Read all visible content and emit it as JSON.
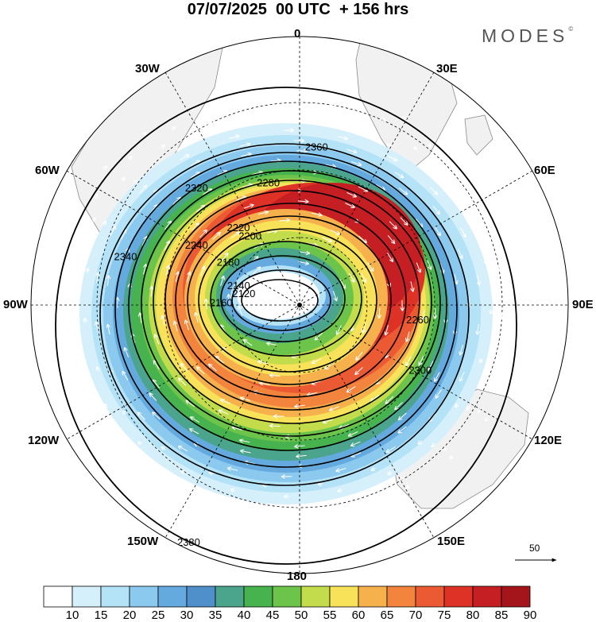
{
  "title": "07/07/2025  00 UTC  + 156 hrs",
  "brand": "MODES",
  "brand_mark": "©",
  "longitude_labels": {
    "0": "0",
    "30E": "30E",
    "60E": "60E",
    "90E": "90E",
    "120E": "120E",
    "150E": "150E",
    "180": "180",
    "150W": "150W",
    "120W": "120W",
    "90W": "90W",
    "60W": "60W",
    "30W": "30W"
  },
  "contours": [
    "2120",
    "2140",
    "2160",
    "2180",
    "2200",
    "2220",
    "2240",
    "2260",
    "2280",
    "2300",
    "2320",
    "2340",
    "2360",
    "2380"
  ],
  "colorbar": {
    "labels": [
      "10",
      "15",
      "20",
      "25",
      "30",
      "35",
      "40",
      "45",
      "50",
      "55",
      "60",
      "65",
      "70",
      "75",
      "80",
      "85",
      "90"
    ],
    "colors": [
      "#ffffff",
      "#d6f0fb",
      "#b4e2f7",
      "#8cc9ee",
      "#65aadf",
      "#4f90ca",
      "#4aa58c",
      "#47b34e",
      "#6cc44b",
      "#c3dc4b",
      "#f7e25a",
      "#f6b14d",
      "#f3843e",
      "#ec5a33",
      "#de3226",
      "#c51e23",
      "#a4151b"
    ]
  },
  "vector_reference": "50",
  "colors": {
    "land": "#f1f1f1",
    "coast": "#8a8a8a",
    "contour": "#000000",
    "vector": "#ffffff"
  },
  "icons": [
    "south-pole-dot-icon",
    "arrow-right-icon"
  ]
}
